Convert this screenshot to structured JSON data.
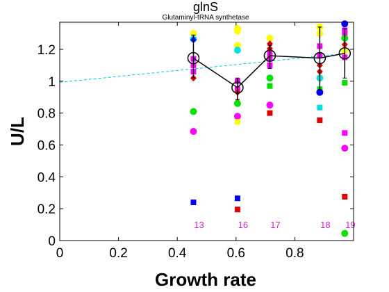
{
  "chart_data": {
    "type": "scatter",
    "title": "glnS",
    "subtitle": "Glutaminyl-tRNA synthetase",
    "xlabel": "Growth rate",
    "ylabel": "U/L",
    "xlim": [
      0,
      1.0
    ],
    "ylim": [
      0,
      1.37
    ],
    "xticks": [
      0,
      0.2,
      0.4,
      0.6,
      0.8
    ],
    "yticks": [
      0,
      0.2,
      0.4,
      0.6,
      0.8,
      1,
      1.2
    ],
    "xtick_labels": [
      "0",
      "0.2",
      "0.4",
      "0.6",
      "0.8"
    ],
    "ytick_labels": [
      "0",
      "0.2",
      "0.4",
      "0.6",
      "0.8",
      "1",
      "1.2"
    ],
    "grid": false,
    "colors": {
      "mean": "#000000",
      "trend": "#00c8e0",
      "counts": "#d020d0"
    },
    "trend_line": {
      "x": [
        0,
        0.97
      ],
      "y": [
        0.993,
        1.173
      ]
    },
    "mean": {
      "x": [
        0.455,
        0.605,
        0.715,
        0.885,
        0.97
      ],
      "y": [
        1.145,
        0.96,
        1.16,
        1.145,
        1.175
      ],
      "err_low": [
        1.02,
        0.885,
        1.08,
        0.945,
        1.02
      ],
      "err_high": [
        1.29,
        1.02,
        1.225,
        1.34,
        1.33
      ]
    },
    "counts": {
      "x": [
        0.455,
        0.605,
        0.715,
        0.885,
        0.97
      ],
      "labels": [
        "13",
        "16",
        "17",
        "18",
        "19"
      ],
      "y": 0.1
    },
    "points": [
      {
        "x": 0.455,
        "y": 1.3,
        "color": "#ffff00",
        "shape": "circle"
      },
      {
        "x": 0.455,
        "y": 1.265,
        "color": "#00e0e0",
        "shape": "circle"
      },
      {
        "x": 0.455,
        "y": 1.26,
        "color": "#0000ff",
        "shape": "diamond"
      },
      {
        "x": 0.455,
        "y": 1.14,
        "color": "#ff00ff",
        "shape": "square"
      },
      {
        "x": 0.455,
        "y": 1.1,
        "color": "#ff00ff",
        "shape": "square"
      },
      {
        "x": 0.455,
        "y": 1.06,
        "color": "#ff00ff",
        "shape": "square"
      },
      {
        "x": 0.455,
        "y": 1.02,
        "color": "#e00000",
        "shape": "diamond"
      },
      {
        "x": 0.455,
        "y": 0.81,
        "color": "#00e000",
        "shape": "circle"
      },
      {
        "x": 0.455,
        "y": 0.685,
        "color": "#ff00ff",
        "shape": "circle"
      },
      {
        "x": 0.455,
        "y": 0.24,
        "color": "#0000ff",
        "shape": "square"
      },
      {
        "x": 0.605,
        "y": 1.33,
        "color": "#ffff00",
        "shape": "circle"
      },
      {
        "x": 0.605,
        "y": 1.315,
        "color": "#ffff00",
        "shape": "circle"
      },
      {
        "x": 0.605,
        "y": 1.225,
        "color": "#ffff00",
        "shape": "circle"
      },
      {
        "x": 0.605,
        "y": 1.195,
        "color": "#00e0e0",
        "shape": "circle"
      },
      {
        "x": 0.605,
        "y": 1.0,
        "color": "#ff00ff",
        "shape": "square"
      },
      {
        "x": 0.605,
        "y": 0.95,
        "color": "#ff00ff",
        "shape": "square"
      },
      {
        "x": 0.605,
        "y": 0.93,
        "color": "#e00000",
        "shape": "diamond"
      },
      {
        "x": 0.605,
        "y": 0.87,
        "color": "#e00000",
        "shape": "diamond"
      },
      {
        "x": 0.605,
        "y": 0.86,
        "color": "#00e000",
        "shape": "circle"
      },
      {
        "x": 0.605,
        "y": 0.78,
        "color": "#ff00ff",
        "shape": "circle"
      },
      {
        "x": 0.605,
        "y": 0.745,
        "color": "#ffff00",
        "shape": "square"
      },
      {
        "x": 0.605,
        "y": 0.265,
        "color": "#0000ff",
        "shape": "square"
      },
      {
        "x": 0.605,
        "y": 0.195,
        "color": "#e00000",
        "shape": "square"
      },
      {
        "x": 0.715,
        "y": 1.27,
        "color": "#ffff00",
        "shape": "circle"
      },
      {
        "x": 0.715,
        "y": 1.235,
        "color": "#e00000",
        "shape": "diamond"
      },
      {
        "x": 0.715,
        "y": 1.205,
        "color": "#e00000",
        "shape": "diamond"
      },
      {
        "x": 0.715,
        "y": 1.175,
        "color": "#ff00ff",
        "shape": "square"
      },
      {
        "x": 0.715,
        "y": 1.14,
        "color": "#ff00ff",
        "shape": "square"
      },
      {
        "x": 0.715,
        "y": 1.1,
        "color": "#ff00ff",
        "shape": "square"
      },
      {
        "x": 0.715,
        "y": 1.02,
        "color": "#00e000",
        "shape": "circle"
      },
      {
        "x": 0.715,
        "y": 0.97,
        "color": "#00e000",
        "shape": "square"
      },
      {
        "x": 0.715,
        "y": 0.85,
        "color": "#ff00ff",
        "shape": "circle"
      },
      {
        "x": 0.715,
        "y": 0.8,
        "color": "#e00000",
        "shape": "square"
      },
      {
        "x": 0.885,
        "y": 1.34,
        "color": "#ffff00",
        "shape": "circle"
      },
      {
        "x": 0.885,
        "y": 1.3,
        "color": "#ffff00",
        "shape": "circle"
      },
      {
        "x": 0.885,
        "y": 1.22,
        "color": "#ff00ff",
        "shape": "square"
      },
      {
        "x": 0.885,
        "y": 1.16,
        "color": "#ff00ff",
        "shape": "square"
      },
      {
        "x": 0.885,
        "y": 1.1,
        "color": "#e00000",
        "shape": "diamond"
      },
      {
        "x": 0.885,
        "y": 1.06,
        "color": "#e00000",
        "shape": "diamond"
      },
      {
        "x": 0.885,
        "y": 1.02,
        "color": "#00e0e0",
        "shape": "circle"
      },
      {
        "x": 0.885,
        "y": 0.95,
        "color": "#00e000",
        "shape": "square"
      },
      {
        "x": 0.885,
        "y": 0.93,
        "color": "#0000ff",
        "shape": "circle"
      },
      {
        "x": 0.885,
        "y": 0.835,
        "color": "#00e0e0",
        "shape": "square"
      },
      {
        "x": 0.885,
        "y": 0.755,
        "color": "#e00000",
        "shape": "square"
      },
      {
        "x": 0.97,
        "y": 1.36,
        "color": "#0000ff",
        "shape": "circle"
      },
      {
        "x": 0.97,
        "y": 1.32,
        "color": "#ff00ff",
        "shape": "square"
      },
      {
        "x": 0.97,
        "y": 1.3,
        "color": "#ff00ff",
        "shape": "square"
      },
      {
        "x": 0.97,
        "y": 1.27,
        "color": "#00e000",
        "shape": "circle"
      },
      {
        "x": 0.97,
        "y": 1.23,
        "color": "#e00000",
        "shape": "diamond"
      },
      {
        "x": 0.97,
        "y": 1.19,
        "color": "#ffff00",
        "shape": "circle"
      },
      {
        "x": 0.97,
        "y": 1.15,
        "color": "#ff00ff",
        "shape": "square"
      },
      {
        "x": 0.97,
        "y": 0.99,
        "color": "#00e000",
        "shape": "square"
      },
      {
        "x": 0.97,
        "y": 0.675,
        "color": "#ff00ff",
        "shape": "square"
      },
      {
        "x": 0.97,
        "y": 0.58,
        "color": "#ff00ff",
        "shape": "circle"
      },
      {
        "x": 0.97,
        "y": 0.275,
        "color": "#e00000",
        "shape": "square"
      },
      {
        "x": 0.97,
        "y": 0.045,
        "color": "#00e000",
        "shape": "circle"
      }
    ]
  }
}
